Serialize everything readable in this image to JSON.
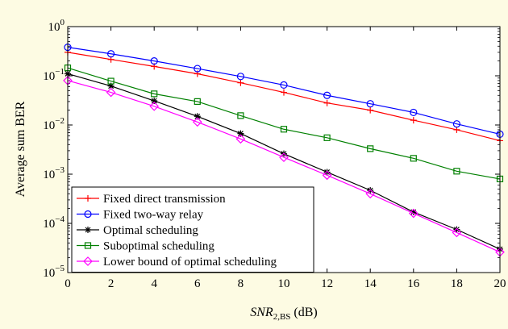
{
  "chart_data": {
    "type": "line",
    "title": "",
    "xlabel_main": "SNR",
    "xlabel_sub": "2,BS",
    "xlabel_unit": " (dB)",
    "ylabel": "Average sum BER",
    "xlim": [
      0,
      20
    ],
    "ylim": [
      1e-05,
      1
    ],
    "yscale": "log",
    "grid": false,
    "legend_position": "bottom-left",
    "x": [
      0,
      2,
      4,
      6,
      8,
      10,
      12,
      14,
      16,
      18,
      20
    ],
    "x_ticks": [
      "0",
      "2",
      "4",
      "6",
      "8",
      "10",
      "12",
      "14",
      "16",
      "18",
      "20"
    ],
    "y_ticks": [
      {
        "base": "10",
        "exp": "0",
        "value": 1
      },
      {
        "base": "10",
        "exp": "−1",
        "value": 0.1
      },
      {
        "base": "10",
        "exp": "−2",
        "value": 0.01
      },
      {
        "base": "10",
        "exp": "−3",
        "value": 0.001
      },
      {
        "base": "10",
        "exp": "−4",
        "value": 0.0001
      },
      {
        "base": "10",
        "exp": "−5",
        "value": 1e-05
      }
    ],
    "series": [
      {
        "name": "Fixed direct transmission",
        "color": "#ff0000",
        "marker": "plus",
        "values": [
          0.3,
          0.215,
          0.155,
          0.11,
          0.072,
          0.046,
          0.028,
          0.02,
          0.0125,
          0.008,
          0.0048
        ]
      },
      {
        "name": "Fixed two-way relay",
        "color": "#0000ff",
        "marker": "circle",
        "values": [
          0.38,
          0.28,
          0.2,
          0.14,
          0.097,
          0.065,
          0.04,
          0.027,
          0.018,
          0.0105,
          0.0065
        ]
      },
      {
        "name": "Optimal scheduling",
        "color": "#000000",
        "marker": "star",
        "values": [
          0.11,
          0.062,
          0.031,
          0.015,
          0.0067,
          0.0026,
          0.0011,
          0.00047,
          0.00017,
          7.5e-05,
          3e-05
        ]
      },
      {
        "name": "Suboptimal scheduling",
        "color": "#008000",
        "marker": "square",
        "values": [
          0.145,
          0.078,
          0.043,
          0.03,
          0.0155,
          0.0082,
          0.0055,
          0.0033,
          0.0021,
          0.00115,
          0.0008
        ]
      },
      {
        "name": "Lower bound of optimal scheduling",
        "color": "#ff00ff",
        "marker": "diamond",
        "values": [
          0.08,
          0.046,
          0.024,
          0.0115,
          0.0052,
          0.0022,
          0.00095,
          0.0004,
          0.00016,
          6.5e-05,
          2.6e-05
        ]
      }
    ]
  }
}
